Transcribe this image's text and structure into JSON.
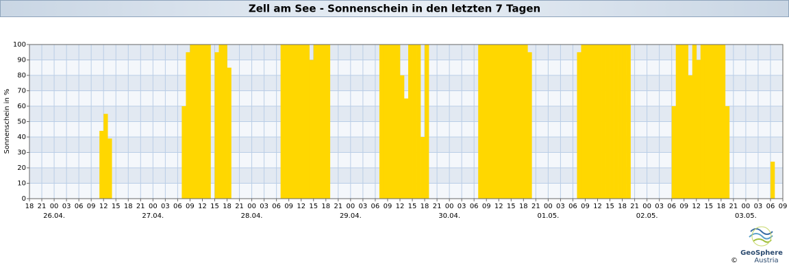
{
  "chart_data": {
    "type": "bar",
    "title": "Zell am See - Sonnenschein in den letzten 7 Tagen",
    "y_label": "Sonnenschein in %",
    "color": "#ffd700",
    "grid": true,
    "xlim": [
      0,
      183
    ],
    "ylim": [
      0,
      100
    ],
    "yticks": [
      0,
      10,
      20,
      30,
      40,
      50,
      60,
      70,
      80,
      90,
      100
    ],
    "xticks": [
      {
        "value": 0,
        "label": "18"
      },
      {
        "value": 3,
        "label": "21"
      },
      {
        "value": 6,
        "label": "00"
      },
      {
        "value": 9,
        "label": "03"
      },
      {
        "value": 12,
        "label": "06"
      },
      {
        "value": 15,
        "label": "09"
      },
      {
        "value": 18,
        "label": "12"
      },
      {
        "value": 21,
        "label": "15"
      },
      {
        "value": 24,
        "label": "18"
      },
      {
        "value": 27,
        "label": "21"
      },
      {
        "value": 30,
        "label": "00"
      },
      {
        "value": 33,
        "label": "03"
      },
      {
        "value": 36,
        "label": "06"
      },
      {
        "value": 39,
        "label": "09"
      },
      {
        "value": 42,
        "label": "12"
      },
      {
        "value": 45,
        "label": "15"
      },
      {
        "value": 48,
        "label": "18"
      },
      {
        "value": 51,
        "label": "21"
      },
      {
        "value": 54,
        "label": "00"
      },
      {
        "value": 57,
        "label": "03"
      },
      {
        "value": 60,
        "label": "06"
      },
      {
        "value": 63,
        "label": "09"
      },
      {
        "value": 66,
        "label": "12"
      },
      {
        "value": 69,
        "label": "15"
      },
      {
        "value": 72,
        "label": "18"
      },
      {
        "value": 75,
        "label": "21"
      },
      {
        "value": 78,
        "label": "00"
      },
      {
        "value": 81,
        "label": "03"
      },
      {
        "value": 84,
        "label": "06"
      },
      {
        "value": 87,
        "label": "09"
      },
      {
        "value": 90,
        "label": "12"
      },
      {
        "value": 93,
        "label": "15"
      },
      {
        "value": 96,
        "label": "18"
      },
      {
        "value": 99,
        "label": "21"
      },
      {
        "value": 102,
        "label": "00"
      },
      {
        "value": 105,
        "label": "03"
      },
      {
        "value": 108,
        "label": "06"
      },
      {
        "value": 111,
        "label": "09"
      },
      {
        "value": 114,
        "label": "12"
      },
      {
        "value": 117,
        "label": "15"
      },
      {
        "value": 120,
        "label": "18"
      },
      {
        "value": 123,
        "label": "21"
      },
      {
        "value": 126,
        "label": "00"
      },
      {
        "value": 129,
        "label": "03"
      },
      {
        "value": 132,
        "label": "06"
      },
      {
        "value": 135,
        "label": "09"
      },
      {
        "value": 138,
        "label": "12"
      },
      {
        "value": 141,
        "label": "15"
      },
      {
        "value": 144,
        "label": "18"
      },
      {
        "value": 147,
        "label": "21"
      },
      {
        "value": 150,
        "label": "00"
      },
      {
        "value": 153,
        "label": "03"
      },
      {
        "value": 156,
        "label": "06"
      },
      {
        "value": 159,
        "label": "09"
      },
      {
        "value": 162,
        "label": "12"
      },
      {
        "value": 165,
        "label": "15"
      },
      {
        "value": 168,
        "label": "18"
      },
      {
        "value": 171,
        "label": "21"
      },
      {
        "value": 174,
        "label": "00"
      },
      {
        "value": 177,
        "label": "03"
      },
      {
        "value": 180,
        "label": "06"
      },
      {
        "value": 183,
        "label": "09"
      }
    ],
    "date_labels": [
      {
        "value": 6,
        "label": "26.04."
      },
      {
        "value": 30,
        "label": "27.04."
      },
      {
        "value": 54,
        "label": "28.04."
      },
      {
        "value": 78,
        "label": "29.04."
      },
      {
        "value": 102,
        "label": "30.04."
      },
      {
        "value": 126,
        "label": "01.05."
      },
      {
        "value": 150,
        "label": "02.05."
      },
      {
        "value": 174,
        "label": "03.05."
      }
    ],
    "x": [
      17,
      18,
      19,
      37,
      38,
      39,
      40,
      41,
      42,
      43,
      45,
      46,
      47,
      48,
      61,
      62,
      63,
      64,
      65,
      66,
      67,
      68,
      69,
      70,
      71,
      72,
      85,
      86,
      87,
      88,
      89,
      90,
      91,
      92,
      93,
      94,
      95,
      96,
      109,
      110,
      111,
      112,
      113,
      114,
      115,
      116,
      117,
      118,
      119,
      120,
      121,
      133,
      134,
      135,
      136,
      137,
      138,
      139,
      140,
      141,
      142,
      143,
      144,
      145,
      156,
      157,
      158,
      159,
      160,
      161,
      162,
      163,
      164,
      165,
      166,
      167,
      168,
      169,
      180
    ],
    "values": [
      44,
      55,
      39,
      60,
      95,
      100,
      100,
      100,
      100,
      100,
      95,
      100,
      100,
      85,
      100,
      100,
      100,
      100,
      100,
      100,
      100,
      90,
      100,
      100,
      100,
      100,
      100,
      100,
      100,
      100,
      100,
      80,
      65,
      100,
      100,
      100,
      40,
      100,
      100,
      100,
      100,
      100,
      100,
      100,
      100,
      100,
      100,
      100,
      100,
      100,
      95,
      95,
      100,
      100,
      100,
      100,
      100,
      100,
      100,
      100,
      100,
      100,
      100,
      100,
      60,
      100,
      100,
      100,
      80,
      100,
      90,
      100,
      100,
      100,
      100,
      100,
      100,
      60,
      24
    ]
  },
  "logo": {
    "name": "GeoSphere",
    "sub": "Austria",
    "copyright": "©"
  }
}
